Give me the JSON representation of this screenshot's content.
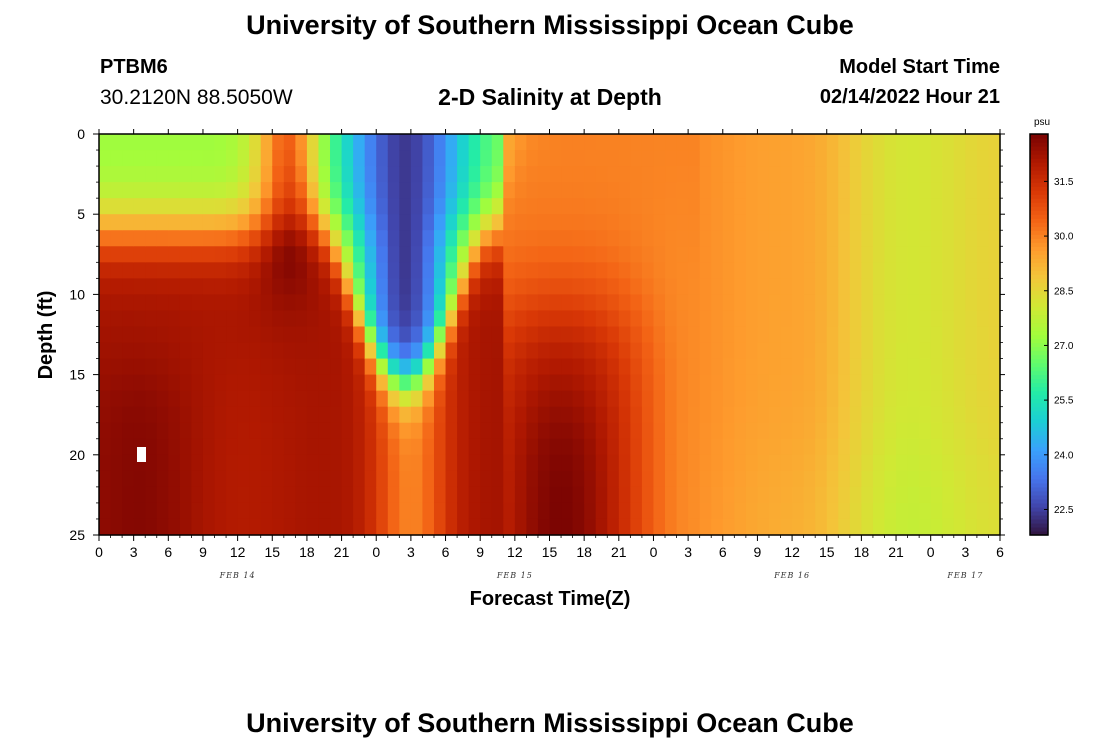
{
  "header": {
    "title": "University of Southern Mississippi Ocean Cube",
    "station_id": "PTBM6",
    "coords": "30.2120N  88.5050W",
    "plot_title": "2-D Salinity at Depth",
    "model_start_label": "Model Start Time",
    "model_start_value": "02/14/2022 Hour 21"
  },
  "footer": {
    "title": "University of Southern Mississippi Ocean Cube"
  },
  "chart_data": {
    "type": "heatmap",
    "title": "2-D Salinity at Depth",
    "xlabel": "Forecast Time(Z)",
    "ylabel": "Depth (ft)",
    "x_range_hours": [
      0,
      78
    ],
    "y_range_ft": [
      0,
      25
    ],
    "x_ticks": [
      "0",
      "3",
      "6",
      "9",
      "12",
      "15",
      "18",
      "21",
      "0",
      "3",
      "6",
      "9",
      "12",
      "15",
      "18",
      "21",
      "0",
      "3",
      "6",
      "9",
      "12",
      "15",
      "18",
      "21",
      "0",
      "3",
      "6"
    ],
    "y_ticks": [
      "0",
      "5",
      "10",
      "15",
      "20",
      "25"
    ],
    "day_labels": [
      {
        "label": "FEB 14",
        "hour": 12
      },
      {
        "label": "FEB 15",
        "hour": 36
      },
      {
        "label": "FEB 16",
        "hour": 60
      },
      {
        "label": "FEB 17",
        "hour": 75
      }
    ],
    "colorbar": {
      "unit": "psu",
      "min": 21.8,
      "max": 32.8,
      "ticks": [
        "22.5",
        "24.0",
        "25.5",
        "27.0",
        "28.5",
        "30.0",
        "31.5"
      ],
      "colors": [
        "#30123b",
        "#4145ab",
        "#4675ed",
        "#39a2fc",
        "#1bcfd4",
        "#24eca6",
        "#61fc6c",
        "#a4fc3b",
        "#d1e834",
        "#f3c63a",
        "#fe9b2d",
        "#f36315",
        "#d93806",
        "#b11901",
        "#7a0402"
      ]
    },
    "features": [
      {
        "name": "surface fresh layer",
        "hours": [
          0,
          10
        ],
        "depth_ft": [
          0,
          6
        ],
        "salinity_psu": 26.0
      },
      {
        "name": "fresh plume",
        "hours": [
          19,
          34
        ],
        "depth_ft": [
          0,
          16
        ],
        "salinity_psu": 22.5
      },
      {
        "name": "salty core 1",
        "hours": [
          2,
          6
        ],
        "depth_ft": [
          17,
          24
        ],
        "salinity_psu": 32.7
      },
      {
        "name": "salty core 2",
        "hours": [
          34,
          42
        ],
        "depth_ft": [
          16,
          25
        ],
        "salinity_psu": 32.6
      },
      {
        "name": "late period",
        "hours": [
          52,
          78
        ],
        "depth_ft": [
          0,
          25
        ],
        "salinity_psu": 29.0
      }
    ]
  }
}
